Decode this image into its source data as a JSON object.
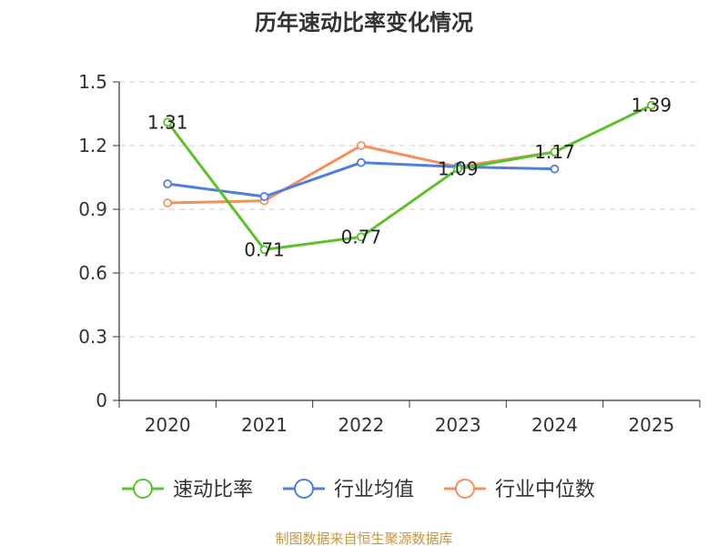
{
  "chart_data": {
    "type": "line",
    "title": "历年速动比率变化情况",
    "categories": [
      "2020",
      "2021",
      "2022",
      "2023",
      "2024",
      "2025"
    ],
    "ylim": [
      0,
      1.5
    ],
    "yticks": [
      "0",
      "0.3",
      "0.6",
      "0.9",
      "1.2",
      "1.5"
    ],
    "grid": true,
    "legend_position": "bottom",
    "series": [
      {
        "name": "速动比率",
        "color": "#5cc12c",
        "values": [
          1.31,
          0.71,
          0.77,
          1.09,
          1.17,
          1.39
        ],
        "labels": [
          "1.31",
          "0.71",
          "0.77",
          "1.09",
          "1.17",
          "1.39"
        ]
      },
      {
        "name": "行业均值",
        "color": "#4e7fdc",
        "values": [
          1.02,
          0.96,
          1.12,
          1.1,
          1.09,
          null
        ]
      },
      {
        "name": "行业中位数",
        "color": "#f4905a",
        "values": [
          0.93,
          0.94,
          1.2,
          1.1,
          1.17,
          null
        ]
      }
    ],
    "source": "制图数据来自恒生聚源数据库"
  }
}
